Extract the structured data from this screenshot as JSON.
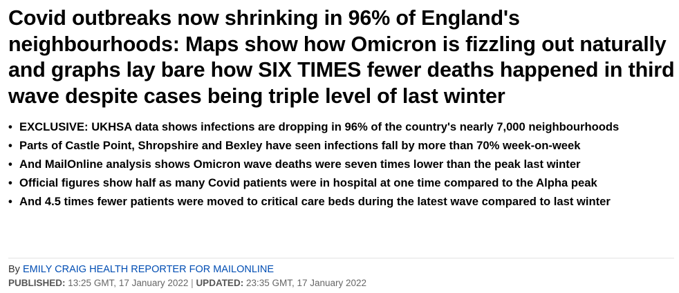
{
  "article": {
    "headline": "Covid outbreaks now shrinking in 96% of England's neighbourhoods: Maps show how Omicron is fizzling out naturally and graphs lay bare how SIX TIMES fewer deaths happened in third wave despite cases being triple level of last winter",
    "bullet_glyph": "•",
    "bullets": [
      "EXCLUSIVE: UKHSA data shows infections are dropping in 96% of the country's nearly 7,000 neighbourhoods",
      "Parts of Castle Point, Shropshire and Bexley have seen infections fall by more than 70% week-on-week",
      "And MailOnline analysis shows Omicron wave deaths were seven times lower than the peak last winter",
      "Official figures show half as many Covid patients were in hospital at one time compared to the Alpha peak",
      "And 4.5 times fewer patients were moved to critical care beds during the latest wave compared to last winter"
    ],
    "byline": {
      "prefix": "By",
      "author": "EMILY CRAIG HEALTH REPORTER FOR MAILONLINE"
    },
    "dates": {
      "published_label": "PUBLISHED:",
      "published_value": "13:25 GMT, 17 January 2022",
      "separator": "|",
      "updated_label": "UPDATED:",
      "updated_value": "23:35 GMT, 17 January 2022"
    }
  },
  "colors": {
    "author_link": "#004db3",
    "meta_text": "#666666",
    "divider": "#e3e3e3"
  }
}
